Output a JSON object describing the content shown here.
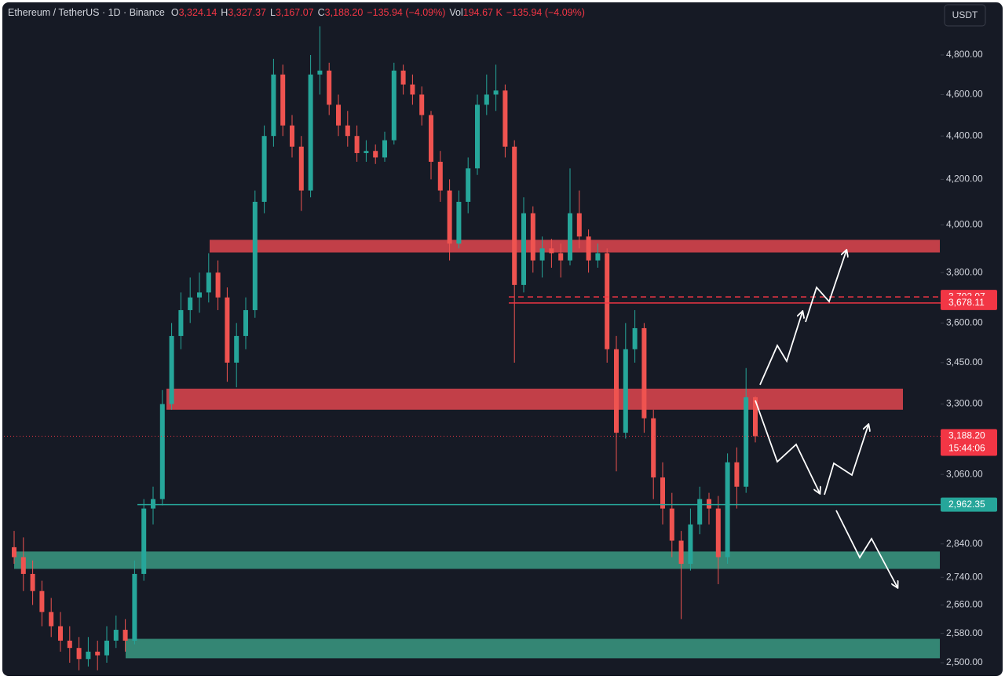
{
  "chart_data": {
    "type": "candlestick",
    "symbol": "Ethereum / TetherUS · 1D · Binance",
    "legend": [
      {
        "label": "O",
        "value": "3,324.14"
      },
      {
        "label": "H",
        "value": "3,327.37"
      },
      {
        "label": "L",
        "value": "3,167.07"
      },
      {
        "label": "C",
        "value": "3,188.20"
      },
      {
        "label": "",
        "value": "−135.94 (−4.09%)"
      },
      {
        "label": "Vol",
        "value": "194.67 K"
      },
      {
        "label": "",
        "value": "−135.94 (−4.09%)"
      }
    ],
    "currency": "USDT",
    "log_scale": true,
    "ylim": [
      2477,
      5070
    ],
    "yticks": [
      {
        "value": 4800,
        "label": "4,800.00"
      },
      {
        "value": 4600,
        "label": "4,600.00"
      },
      {
        "value": 4400,
        "label": "4,400.00"
      },
      {
        "value": 4200,
        "label": "4,200.00"
      },
      {
        "value": 4000,
        "label": "4,000.00"
      },
      {
        "value": 3800,
        "label": "3,800.00"
      },
      {
        "value": 3600,
        "label": "3,600.00"
      },
      {
        "value": 3450,
        "label": "3,450.00"
      },
      {
        "value": 3300,
        "label": "3,300.00"
      },
      {
        "value": 3060,
        "label": "3,060.00"
      },
      {
        "value": 2840,
        "label": "2,840.00"
      },
      {
        "value": 2740,
        "label": "2,740.00"
      },
      {
        "value": 2660,
        "label": "2,660.00"
      },
      {
        "value": 2580,
        "label": "2,580.00"
      },
      {
        "value": 2500,
        "label": "2,500.00"
      }
    ],
    "up_color": "#26a69a",
    "down_color": "#ef5350",
    "ohlc": [
      [
        2830,
        2880,
        2780,
        2800
      ],
      [
        2800,
        2860,
        2700,
        2750
      ],
      [
        2750,
        2790,
        2660,
        2700
      ],
      [
        2700,
        2730,
        2600,
        2640
      ],
      [
        2640,
        2680,
        2570,
        2600
      ],
      [
        2600,
        2640,
        2530,
        2560
      ],
      [
        2560,
        2600,
        2500,
        2540
      ],
      [
        2540,
        2570,
        2480,
        2510
      ],
      [
        2510,
        2570,
        2490,
        2530
      ],
      [
        2530,
        2560,
        2480,
        2520
      ],
      [
        2520,
        2600,
        2500,
        2560
      ],
      [
        2560,
        2630,
        2540,
        2590
      ],
      [
        2590,
        2620,
        2530,
        2560
      ],
      [
        2560,
        2790,
        2550,
        2750
      ],
      [
        2750,
        2980,
        2730,
        2950
      ],
      [
        2950,
        3020,
        2900,
        2980
      ],
      [
        2980,
        3350,
        2960,
        3300
      ],
      [
        3300,
        3600,
        3280,
        3550
      ],
      [
        3550,
        3720,
        3500,
        3650
      ],
      [
        3650,
        3780,
        3600,
        3700
      ],
      [
        3700,
        3800,
        3640,
        3720
      ],
      [
        3720,
        3880,
        3680,
        3800
      ],
      [
        3800,
        3850,
        3650,
        3700
      ],
      [
        3700,
        3740,
        3380,
        3450
      ],
      [
        3450,
        3600,
        3360,
        3550
      ],
      [
        3550,
        3700,
        3500,
        3650
      ],
      [
        3650,
        4150,
        3620,
        4100
      ],
      [
        4100,
        4450,
        4050,
        4400
      ],
      [
        4400,
        4780,
        4350,
        4700
      ],
      [
        4700,
        4750,
        4400,
        4450
      ],
      [
        4450,
        4500,
        4300,
        4350
      ],
      [
        4350,
        4400,
        4060,
        4150
      ],
      [
        4150,
        4800,
        4120,
        4700
      ],
      [
        4700,
        4950,
        4600,
        4720
      ],
      [
        4720,
        4760,
        4500,
        4550
      ],
      [
        4550,
        4600,
        4400,
        4450
      ],
      [
        4450,
        4520,
        4350,
        4400
      ],
      [
        4400,
        4450,
        4280,
        4320
      ],
      [
        4320,
        4380,
        4280,
        4330
      ],
      [
        4330,
        4360,
        4270,
        4300
      ],
      [
        4300,
        4420,
        4280,
        4380
      ],
      [
        4380,
        4760,
        4360,
        4720
      ],
      [
        4720,
        4750,
        4600,
        4650
      ],
      [
        4650,
        4700,
        4550,
        4600
      ],
      [
        4600,
        4640,
        4450,
        4500
      ],
      [
        4500,
        4520,
        4200,
        4280
      ],
      [
        4280,
        4330,
        4100,
        4150
      ],
      [
        4150,
        4200,
        3850,
        3920
      ],
      [
        3920,
        4150,
        3900,
        4100
      ],
      [
        4100,
        4300,
        4050,
        4250
      ],
      [
        4250,
        4600,
        4220,
        4550
      ],
      [
        4550,
        4700,
        4500,
        4600
      ],
      [
        4600,
        4750,
        4520,
        4620
      ],
      [
        4620,
        4650,
        4300,
        4350
      ],
      [
        4350,
        4380,
        3450,
        3750
      ],
      [
        3750,
        4120,
        3720,
        4050
      ],
      [
        4050,
        4080,
        3800,
        3850
      ],
      [
        3850,
        3950,
        3780,
        3900
      ],
      [
        3900,
        3940,
        3820,
        3880
      ],
      [
        3880,
        3920,
        3780,
        3850
      ],
      [
        3850,
        4250,
        3830,
        4050
      ],
      [
        4050,
        4150,
        3900,
        3950
      ],
      [
        3950,
        3980,
        3800,
        3850
      ],
      [
        3850,
        3920,
        3820,
        3880
      ],
      [
        3880,
        3900,
        3450,
        3500
      ],
      [
        3500,
        3550,
        3070,
        3200
      ],
      [
        3200,
        3600,
        3180,
        3500
      ],
      [
        3500,
        3650,
        3450,
        3580
      ],
      [
        3580,
        3600,
        3200,
        3250
      ],
      [
        3250,
        3280,
        2980,
        3050
      ],
      [
        3050,
        3100,
        2900,
        2950
      ],
      [
        2950,
        3000,
        2800,
        2850
      ],
      [
        2850,
        2880,
        2620,
        2780
      ],
      [
        2780,
        2950,
        2760,
        2900
      ],
      [
        2900,
        3020,
        2870,
        2980
      ],
      [
        2980,
        3000,
        2900,
        2950
      ],
      [
        2950,
        2990,
        2720,
        2800
      ],
      [
        2800,
        3130,
        2780,
        3100
      ],
      [
        3100,
        3150,
        2950,
        3020
      ],
      [
        3020,
        3430,
        3000,
        3324.14
      ],
      [
        3324.14,
        3327.37,
        3167.07,
        3188.2
      ]
    ],
    "zones": [
      {
        "top": 3936,
        "bottom": 3883,
        "color": "#e0474f"
      },
      {
        "top": 3355,
        "bottom": 3280,
        "color": "#e0474f"
      },
      {
        "top": 2817,
        "bottom": 2765,
        "color": "#3a9a82"
      },
      {
        "top": 2565,
        "bottom": 2512,
        "color": "#3a9a82"
      }
    ],
    "price_tags": [
      {
        "label": "3,702.07",
        "value": 3702.07,
        "color": "#f23645",
        "style": "dashed"
      },
      {
        "label": "3,678.11",
        "value": 3678.11,
        "color": "#f23645",
        "style": "solid"
      },
      {
        "label": "3,188.20",
        "sublabel": "15:44:06",
        "value": 3188.2,
        "color": "#f23645",
        "style": "dotted"
      },
      {
        "label": "2,962.35",
        "value": 2962.35,
        "color": "#26a69a",
        "style": "solid"
      }
    ]
  }
}
